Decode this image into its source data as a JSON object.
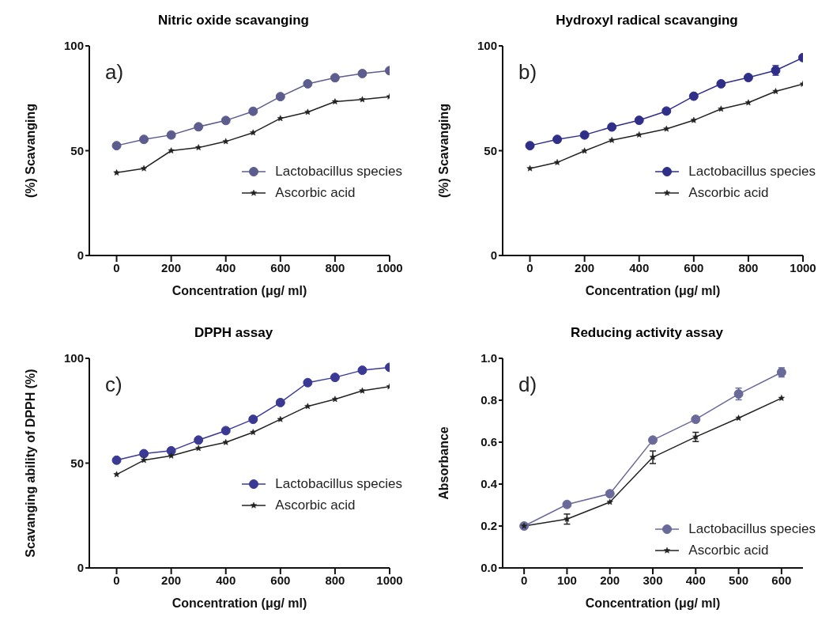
{
  "chart_data": [
    {
      "type": "line",
      "title": "Nitric oxide scavanging",
      "xlabel": "Concentration (μg/ ml)",
      "ylabel": "(%) Scavanging",
      "annotations": [
        "a)"
      ],
      "x": [
        0,
        100,
        200,
        300,
        400,
        500,
        600,
        700,
        800,
        900,
        1000
      ],
      "xlim": [
        -100,
        1000
      ],
      "xticks": [
        0,
        200,
        400,
        600,
        800,
        1000
      ],
      "ylim": [
        0,
        100
      ],
      "yticks": [
        0,
        50,
        100
      ],
      "legend": "right",
      "series": [
        {
          "name": "Lactobacillus species",
          "color": "#5c5c8e",
          "marker": "circle",
          "values": [
            52.4,
            55.4,
            57.5,
            61.4,
            64.4,
            68.8,
            75.8,
            81.9,
            84.8,
            86.8,
            88.2
          ]
        },
        {
          "name": "Ascorbic acid",
          "color": "#222222",
          "marker": "star",
          "values": [
            39.5,
            41.5,
            50,
            51.5,
            54.4,
            58.6,
            65.4,
            68.4,
            73.4,
            74.4,
            75.8
          ]
        }
      ]
    },
    {
      "type": "line",
      "title": "Hydroxyl radical scavanging",
      "xlabel": "Concentration (μg/ ml)",
      "ylabel": "(%) Scavanging",
      "annotations": [
        "b)"
      ],
      "x": [
        0,
        100,
        200,
        300,
        400,
        500,
        600,
        700,
        800,
        900,
        1000
      ],
      "xlim": [
        -100,
        1000
      ],
      "xticks": [
        0,
        200,
        400,
        600,
        800,
        1000
      ],
      "ylim": [
        0,
        100
      ],
      "yticks": [
        0,
        50,
        100
      ],
      "legend": "right",
      "series": [
        {
          "name": "Lactobacillus species",
          "color": "#2f2f8a",
          "marker": "circle",
          "values": [
            52.4,
            55.4,
            57.5,
            61.3,
            64.5,
            68.9,
            76,
            81.9,
            84.9,
            88.3,
            94.4
          ],
          "errors": [
            null,
            null,
            null,
            null,
            null,
            null,
            null,
            null,
            null,
            2.3,
            null
          ]
        },
        {
          "name": "Ascorbic acid",
          "color": "#222222",
          "marker": "star",
          "values": [
            41.5,
            44.4,
            49.9,
            55,
            57.6,
            60.4,
            64.5,
            69.9,
            72.9,
            78.3,
            81.8
          ]
        }
      ]
    },
    {
      "type": "line",
      "title": "DPPH assay",
      "xlabel": "Concentration (μg/ ml)",
      "ylabel": "Scavanging ability of DPPH (%)",
      "annotations": [
        "c)"
      ],
      "x": [
        0,
        100,
        200,
        300,
        400,
        500,
        600,
        700,
        800,
        900,
        1000
      ],
      "xlim": [
        -100,
        1000
      ],
      "xticks": [
        0,
        200,
        400,
        600,
        800,
        1000
      ],
      "ylim": [
        0,
        100
      ],
      "yticks": [
        0,
        50,
        100
      ],
      "legend": "right",
      "series": [
        {
          "name": "Lactobacillus species",
          "color": "#3a3a94",
          "marker": "circle",
          "values": [
            51.4,
            54.5,
            55.9,
            61,
            65.5,
            70.9,
            78.9,
            88.4,
            90.9,
            94.3,
            95.7
          ]
        },
        {
          "name": "Ascorbic acid",
          "color": "#222222",
          "marker": "star",
          "values": [
            44.6,
            51.4,
            53.5,
            57.1,
            59.9,
            64.7,
            70.9,
            77.1,
            80.5,
            84.5,
            86.5
          ]
        }
      ]
    },
    {
      "type": "line",
      "title": "Reducing activity assay",
      "xlabel": "Concentration (μg/ ml)",
      "ylabel": "Absorbance",
      "annotations": [
        "d)"
      ],
      "x": [
        0,
        100,
        200,
        300,
        400,
        500,
        600
      ],
      "xlim": [
        -50,
        650
      ],
      "xticks": [
        0,
        100,
        200,
        300,
        400,
        500,
        600
      ],
      "ylim": [
        0,
        1
      ],
      "yticks": [
        {
          "value": 0,
          "label": "0.0"
        },
        0.2,
        0.4,
        0.6,
        0.8,
        {
          "value": 1,
          "label": "1.0"
        }
      ],
      "legend": "bottom right",
      "series": [
        {
          "name": "Lactobacillus species",
          "color": "#6a6a9a",
          "marker": "circle",
          "values": [
            0.2,
            0.303,
            0.354,
            0.61,
            0.709,
            0.83,
            0.933
          ],
          "errors": [
            null,
            null,
            null,
            null,
            null,
            0.028,
            0.022
          ]
        },
        {
          "name": "Ascorbic acid",
          "color": "#222222",
          "marker": "star",
          "values": [
            0.2,
            0.233,
            0.314,
            0.528,
            0.625,
            0.715,
            0.81
          ],
          "errors": [
            null,
            0.024,
            null,
            0.03,
            0.022,
            null,
            null
          ]
        }
      ]
    }
  ]
}
